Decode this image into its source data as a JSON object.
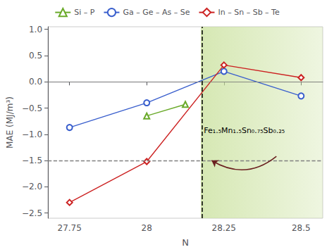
{
  "chart_data": {
    "type": "line",
    "xlabel": "N",
    "ylabel": "MAE (MJ/m³)",
    "xlim": [
      27.68,
      28.57
    ],
    "ylim": [
      -2.6,
      1.05
    ],
    "xticks": [
      27.75,
      28.0,
      28.25,
      28.5
    ],
    "yticks": [
      {
        "value": -2.5,
        "label": "−2.5"
      },
      {
        "value": -2.0,
        "label": "−2.0"
      },
      {
        "value": -1.5,
        "label": "−1.5"
      },
      {
        "value": -1.0,
        "label": "−1.0"
      },
      {
        "value": -0.5,
        "label": "−0.5"
      },
      {
        "value": 0.0,
        "label": "0.0"
      },
      0.5,
      {
        "value": 1.0,
        "label": "1.0"
      }
    ],
    "grid": false,
    "legend": "top",
    "series": [
      {
        "name": "Si – P",
        "color": "#6aaa2a",
        "marker": "triangle",
        "x": [
          28.0,
          28.125
        ],
        "values": [
          -0.65,
          -0.43
        ]
      },
      {
        "name": "Ga – Ge – As – Se",
        "color": "#3a5fcd",
        "marker": "circle",
        "x": [
          27.75,
          28.0,
          28.25,
          28.5
        ],
        "values": [
          -0.87,
          -0.4,
          0.2,
          -0.27
        ]
      },
      {
        "name": "In – Sn – Sb – Te",
        "color": "#cc2222",
        "marker": "diamond",
        "x": [
          27.75,
          28.0,
          28.25,
          28.5
        ],
        "values": [
          -2.3,
          -1.52,
          0.32,
          0.08
        ]
      }
    ],
    "hlines": [
      {
        "y": 0.0,
        "color": "gray",
        "line_style": "solid"
      },
      {
        "y": -1.5,
        "color": "gray",
        "line_style": "dashed"
      }
    ],
    "vlines": [
      {
        "x": 28.175,
        "color": "black",
        "line_style": "dashed"
      }
    ],
    "shade": {
      "x_start": 28.175,
      "x_end": 28.57,
      "color": "#c8e09a"
    },
    "annotations": [
      {
        "text": "Fe₁.₅Mn₁.₅Sn₀.₇₅Sb₀.₂₅",
        "x": 28.185,
        "y": -1.0
      }
    ],
    "arrows": [
      {
        "x_start": 28.42,
        "y_start": -1.42,
        "x_end": 28.21,
        "y_end": -1.5,
        "color": "#6b2020"
      }
    ]
  }
}
